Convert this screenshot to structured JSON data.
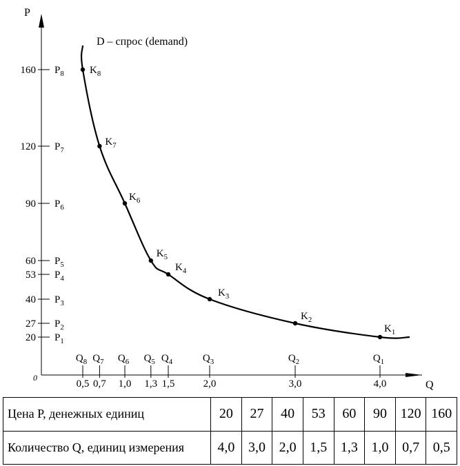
{
  "chart_data": {
    "type": "line",
    "xlabel": "Q",
    "ylabel": "P",
    "origin_label": "0",
    "curve_label": "D – спрос (demand)",
    "x_range": [
      0,
      4.35
    ],
    "y_range": [
      0,
      176
    ],
    "points": [
      {
        "name": "K",
        "sub": "1",
        "q": 4.0,
        "p": 20,
        "q_label": "4,0",
        "q_sym": "Q",
        "q_sub": "1",
        "p_label": "20",
        "p_sym": "P",
        "p_sub": "1"
      },
      {
        "name": "K",
        "sub": "2",
        "q": 3.0,
        "p": 27,
        "q_label": "3,0",
        "q_sym": "Q",
        "q_sub": "2",
        "p_label": "27",
        "p_sym": "P",
        "p_sub": "2"
      },
      {
        "name": "K",
        "sub": "3",
        "q": 2.0,
        "p": 40,
        "q_label": "2,0",
        "q_sym": "Q",
        "q_sub": "3",
        "p_label": "40",
        "p_sym": "P",
        "p_sub": "3"
      },
      {
        "name": "K",
        "sub": "4",
        "q": 1.5,
        "p": 53,
        "q_label": "1,5",
        "q_sym": "Q",
        "q_sub": "4",
        "p_label": "53",
        "p_sym": "P",
        "p_sub": "4"
      },
      {
        "name": "K",
        "sub": "5",
        "q": 1.3,
        "p": 60,
        "q_label": "1,3",
        "q_sym": "Q",
        "q_sub": "5",
        "p_label": "60",
        "p_sym": "P",
        "p_sub": "5"
      },
      {
        "name": "K",
        "sub": "6",
        "q": 1.0,
        "p": 90,
        "q_label": "1,0",
        "q_sym": "Q",
        "q_sub": "6",
        "p_label": "90",
        "p_sym": "P",
        "p_sub": "6"
      },
      {
        "name": "K",
        "sub": "7",
        "q": 0.7,
        "p": 120,
        "q_label": "0,7",
        "q_sym": "Q",
        "q_sub": "7",
        "p_label": "120",
        "p_sym": "P",
        "p_sub": "7"
      },
      {
        "name": "K",
        "sub": "8",
        "q": 0.5,
        "p": 160,
        "q_label": "0,5",
        "q_sym": "Q",
        "q_sub": "8",
        "p_label": "160",
        "p_sym": "P",
        "p_sub": "8"
      }
    ],
    "curve_q_range": [
      0.5,
      4.35
    ],
    "curve_top_p": 176
  },
  "table": {
    "price_label": "Цена P, денежных единиц",
    "prices": [
      "20",
      "27",
      "40",
      "53",
      "60",
      "90",
      "120",
      "160"
    ],
    "quantity_label": "Количество Q, единиц измерения",
    "quantities": [
      "4,0",
      "3,0",
      "2,0",
      "1,5",
      "1,3",
      "1,0",
      "0,7",
      "0,5"
    ]
  }
}
